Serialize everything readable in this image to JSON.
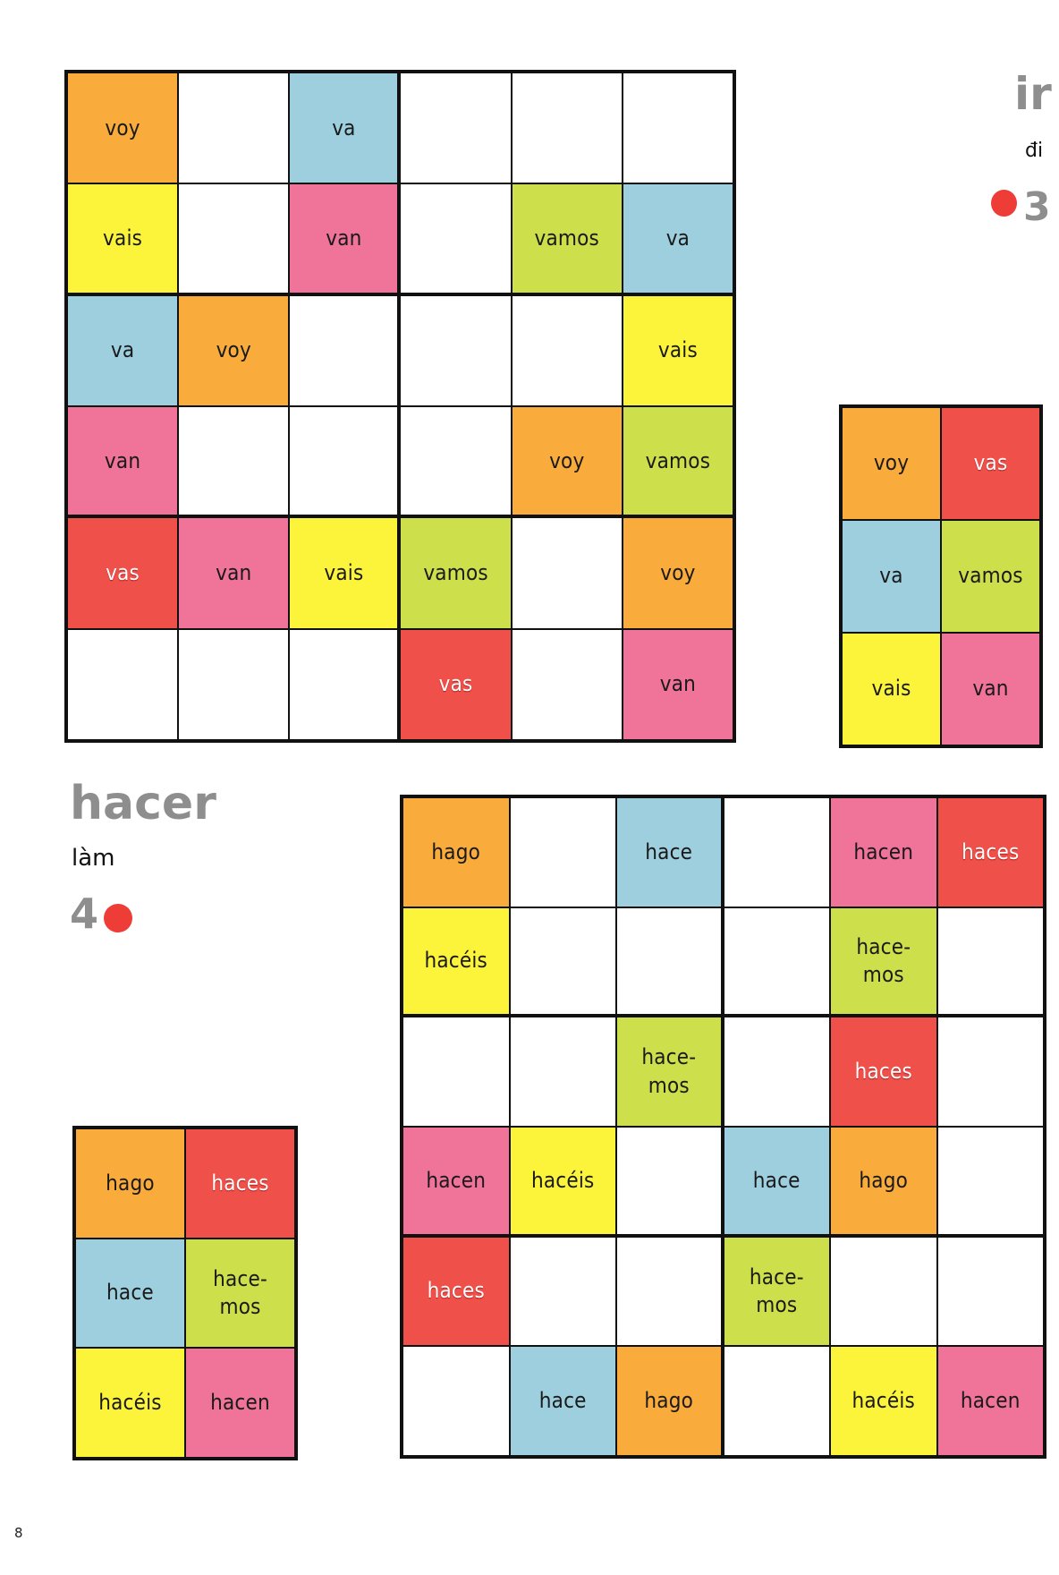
{
  "page_number": "8",
  "colors": {
    "orange": "#f9ab3c",
    "yellow": "#fbf43a",
    "blue": "#9ecfdf",
    "pink": "#f0739a",
    "lime": "#cddf4a",
    "red": "#f0504a",
    "dot": "#ee3d36"
  },
  "ir": {
    "verb": "ir",
    "meaning": "đi",
    "number": "3",
    "grid": [
      [
        {
          "t": "voy",
          "c": "orange"
        },
        {
          "t": "",
          "c": "white"
        },
        {
          "t": "va",
          "c": "blue"
        },
        {
          "t": "",
          "c": "white"
        },
        {
          "t": "",
          "c": "white"
        },
        {
          "t": "",
          "c": "white"
        }
      ],
      [
        {
          "t": "vais",
          "c": "yellow"
        },
        {
          "t": "",
          "c": "white"
        },
        {
          "t": "van",
          "c": "pink"
        },
        {
          "t": "",
          "c": "white"
        },
        {
          "t": "vamos",
          "c": "lime"
        },
        {
          "t": "va",
          "c": "blue"
        }
      ],
      [
        {
          "t": "va",
          "c": "blue"
        },
        {
          "t": "voy",
          "c": "orange"
        },
        {
          "t": "",
          "c": "white"
        },
        {
          "t": "",
          "c": "white"
        },
        {
          "t": "",
          "c": "white"
        },
        {
          "t": "vais",
          "c": "yellow"
        }
      ],
      [
        {
          "t": "van",
          "c": "pink"
        },
        {
          "t": "",
          "c": "white"
        },
        {
          "t": "",
          "c": "white"
        },
        {
          "t": "",
          "c": "white"
        },
        {
          "t": "voy",
          "c": "orange"
        },
        {
          "t": "vamos",
          "c": "lime"
        }
      ],
      [
        {
          "t": "vas",
          "c": "red"
        },
        {
          "t": "van",
          "c": "pink"
        },
        {
          "t": "vais",
          "c": "yellow"
        },
        {
          "t": "vamos",
          "c": "lime"
        },
        {
          "t": "",
          "c": "white"
        },
        {
          "t": "voy",
          "c": "orange"
        }
      ],
      [
        {
          "t": "",
          "c": "white"
        },
        {
          "t": "",
          "c": "white"
        },
        {
          "t": "",
          "c": "white"
        },
        {
          "t": "vas",
          "c": "red"
        },
        {
          "t": "",
          "c": "white"
        },
        {
          "t": "van",
          "c": "pink"
        }
      ]
    ],
    "legend": [
      {
        "t": "voy",
        "c": "orange"
      },
      {
        "t": "vas",
        "c": "red"
      },
      {
        "t": "va",
        "c": "blue"
      },
      {
        "t": "vamos",
        "c": "lime"
      },
      {
        "t": "vais",
        "c": "yellow"
      },
      {
        "t": "van",
        "c": "pink"
      }
    ]
  },
  "hacer": {
    "verb": "hacer",
    "meaning": "làm",
    "number": "4",
    "grid": [
      [
        {
          "t": "hago",
          "c": "orange"
        },
        {
          "t": "",
          "c": "white"
        },
        {
          "t": "hace",
          "c": "blue"
        },
        {
          "t": "",
          "c": "white"
        },
        {
          "t": "hacen",
          "c": "pink"
        },
        {
          "t": "haces",
          "c": "red"
        }
      ],
      [
        {
          "t": "hacéis",
          "c": "yellow"
        },
        {
          "t": "",
          "c": "white"
        },
        {
          "t": "",
          "c": "white"
        },
        {
          "t": "",
          "c": "white"
        },
        {
          "t": "hace-\nmos",
          "c": "lime"
        },
        {
          "t": "",
          "c": "white"
        }
      ],
      [
        {
          "t": "",
          "c": "white"
        },
        {
          "t": "",
          "c": "white"
        },
        {
          "t": "hace-\nmos",
          "c": "lime"
        },
        {
          "t": "",
          "c": "white"
        },
        {
          "t": "haces",
          "c": "red"
        },
        {
          "t": "",
          "c": "white"
        }
      ],
      [
        {
          "t": "hacen",
          "c": "pink"
        },
        {
          "t": "hacéis",
          "c": "yellow"
        },
        {
          "t": "",
          "c": "white"
        },
        {
          "t": "hace",
          "c": "blue"
        },
        {
          "t": "hago",
          "c": "orange"
        },
        {
          "t": "",
          "c": "white"
        }
      ],
      [
        {
          "t": "haces",
          "c": "red"
        },
        {
          "t": "",
          "c": "white"
        },
        {
          "t": "",
          "c": "white"
        },
        {
          "t": "hace-\nmos",
          "c": "lime"
        },
        {
          "t": "",
          "c": "white"
        },
        {
          "t": "",
          "c": "white"
        }
      ],
      [
        {
          "t": "",
          "c": "white"
        },
        {
          "t": "hace",
          "c": "blue"
        },
        {
          "t": "hago",
          "c": "orange"
        },
        {
          "t": "",
          "c": "white"
        },
        {
          "t": "hacéis",
          "c": "yellow"
        },
        {
          "t": "hacen",
          "c": "pink"
        }
      ]
    ],
    "legend": [
      {
        "t": "hago",
        "c": "orange"
      },
      {
        "t": "haces",
        "c": "red"
      },
      {
        "t": "hace",
        "c": "blue"
      },
      {
        "t": "hace-\nmos",
        "c": "lime"
      },
      {
        "t": "hacéis",
        "c": "yellow"
      },
      {
        "t": "hacen",
        "c": "pink"
      }
    ]
  }
}
